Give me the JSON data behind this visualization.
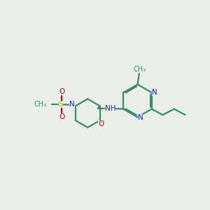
{
  "bg_color": "#eaeeeb",
  "C_color": "#3a8a6e",
  "N_color": "#2020cc",
  "O_color": "#cc0000",
  "S_color": "#bbbb00",
  "lw": 1.6,
  "fs": 7.5,
  "xlim": [
    0,
    10
  ],
  "ylim": [
    0,
    10
  ]
}
